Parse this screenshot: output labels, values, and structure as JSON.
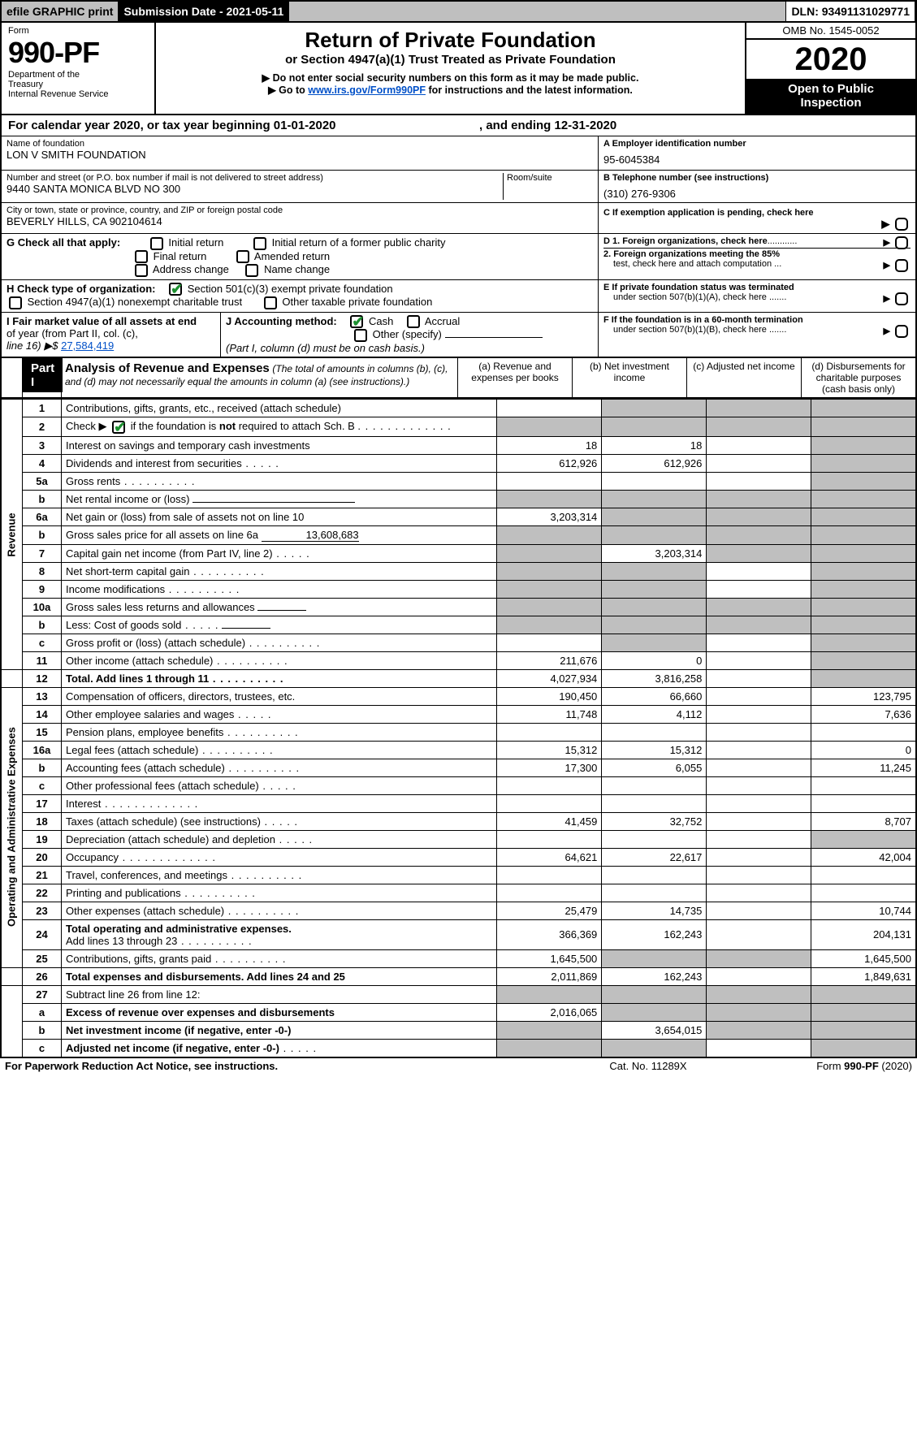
{
  "topbar": {
    "efile": "efile GRAPHIC print",
    "submission_label": "Submission Date - 2021-05-11",
    "dln_label": "DLN: 93491131029771"
  },
  "header": {
    "form_word": "Form",
    "form_no": "990-PF",
    "dept1": "Department of the",
    "dept2": "Treasury",
    "dept3": "Internal Revenue Service",
    "title": "Return of Private Foundation",
    "subtitle": "or Section 4947(a)(1) Trust Treated as Private Foundation",
    "instr1": "▶ Do not enter social security numbers on this form as it may be made public.",
    "instr2a": "▶ Go to ",
    "instr2_link": "www.irs.gov/Form990PF",
    "instr2b": " for instructions and the latest information.",
    "omb": "OMB No. 1545-0052",
    "year": "2020",
    "open1": "Open to Public",
    "open2": "Inspection"
  },
  "calbar": {
    "a": "For calendar year 2020, or tax year beginning 01-01-2020",
    "b": ", and ending 12-31-2020"
  },
  "id": {
    "name_label": "Name of foundation",
    "name": "LON V SMITH FOUNDATION",
    "ein_label": "A Employer identification number",
    "ein": "95-6045384",
    "addr_label": "Number and street (or P.O. box number if mail is not delivered to street address)",
    "addr": "9440 SANTA MONICA BLVD NO 300",
    "room_label": "Room/suite",
    "phone_label": "B Telephone number (see instructions)",
    "phone": "(310) 276-9306",
    "city_label": "City or town, state or province, country, and ZIP or foreign postal code",
    "city": "BEVERLY HILLS, CA  902104614",
    "c_label": "C If exemption application is pending, check here"
  },
  "g": {
    "label": "G Check all that apply:",
    "o1": "Initial return",
    "o2": "Initial return of a former public charity",
    "o3": "Final return",
    "o4": "Amended return",
    "o5": "Address change",
    "o6": "Name change"
  },
  "d": {
    "d1": "D 1. Foreign organizations, check here",
    "d2a": "2. Foreign organizations meeting the 85%",
    "d2b": "test, check here and attach computation ..."
  },
  "h": {
    "label": "H Check type of organization:",
    "o1": "Section 501(c)(3) exempt private foundation",
    "o2": "Section 4947(a)(1) nonexempt charitable trust",
    "o3": "Other taxable private foundation"
  },
  "e": {
    "l1": "E  If private foundation status was terminated",
    "l2": "under section 507(b)(1)(A), check here ......."
  },
  "i": {
    "l1": "I Fair market value of all assets at end",
    "l2": "of year (from Part II, col. (c),",
    "l3": "line 16) ▶$",
    "val": "27,584,419"
  },
  "j": {
    "label": "J Accounting method:",
    "cash": "Cash",
    "accrual": "Accrual",
    "other": "Other (specify)",
    "note": "(Part I, column (d) must be on cash basis.)"
  },
  "f": {
    "l1": "F  If the foundation is in a 60-month termination",
    "l2": "under section 507(b)(1)(B), check here ......."
  },
  "part1": {
    "label": "Part I",
    "title": "Analysis of Revenue and Expenses",
    "paren": "(The total of amounts in columns (b), (c), and (d) may not necessarily equal the amounts in column (a) (see instructions).)",
    "cola": "(a)    Revenue and expenses per books",
    "colb": "(b)   Net investment income",
    "colc": "(c)   Adjusted net income",
    "cold": "(d)   Disbursements for charitable purposes (cash basis only)"
  },
  "sides": {
    "rev": "Revenue",
    "exp": "Operating and Administrative Expenses"
  },
  "rows": {
    "r1": {
      "n": "1",
      "d": "Contributions, gifts, grants, etc., received (attach schedule)"
    },
    "r2": {
      "n": "2",
      "d_a": "Check ▶",
      "d_b": " if the foundation is ",
      "d_not": "not",
      "d_c": " required to attach Sch. B"
    },
    "r3": {
      "n": "3",
      "d": "Interest on savings and temporary cash investments",
      "a": "18",
      "b": "18"
    },
    "r4": {
      "n": "4",
      "d": "Dividends and interest from securities",
      "a": "612,926",
      "b": "612,926"
    },
    "r5a": {
      "n": "5a",
      "d": "Gross rents"
    },
    "r5b": {
      "n": "b",
      "d": "Net rental income or (loss)"
    },
    "r6a": {
      "n": "6a",
      "d": "Net gain or (loss) from sale of assets not on line 10",
      "a": "3,203,314"
    },
    "r6b": {
      "n": "b",
      "d": "Gross sales price for all assets on line 6a",
      "v": "13,608,683"
    },
    "r7": {
      "n": "7",
      "d": "Capital gain net income (from Part IV, line 2)",
      "b": "3,203,314"
    },
    "r8": {
      "n": "8",
      "d": "Net short-term capital gain"
    },
    "r9": {
      "n": "9",
      "d": "Income modifications"
    },
    "r10a": {
      "n": "10a",
      "d": "Gross sales less returns and allowances"
    },
    "r10b": {
      "n": "b",
      "d": "Less: Cost of goods sold"
    },
    "r10c": {
      "n": "c",
      "d": "Gross profit or (loss) (attach schedule)"
    },
    "r11": {
      "n": "11",
      "d": "Other income (attach schedule)",
      "a": "211,676",
      "b": "0"
    },
    "r12": {
      "n": "12",
      "d": "Total. Add lines 1 through 11",
      "a": "4,027,934",
      "b": "3,816,258"
    },
    "r13": {
      "n": "13",
      "d": "Compensation of officers, directors, trustees, etc.",
      "a": "190,450",
      "b": "66,660",
      "dd": "123,795"
    },
    "r14": {
      "n": "14",
      "d": "Other employee salaries and wages",
      "a": "11,748",
      "b": "4,112",
      "dd": "7,636"
    },
    "r15": {
      "n": "15",
      "d": "Pension plans, employee benefits"
    },
    "r16a": {
      "n": "16a",
      "d": "Legal fees (attach schedule)",
      "a": "15,312",
      "b": "15,312",
      "dd": "0"
    },
    "r16b": {
      "n": "b",
      "d": "Accounting fees (attach schedule)",
      "a": "17,300",
      "b": "6,055",
      "dd": "11,245"
    },
    "r16c": {
      "n": "c",
      "d": "Other professional fees (attach schedule)"
    },
    "r17": {
      "n": "17",
      "d": "Interest"
    },
    "r18": {
      "n": "18",
      "d": "Taxes (attach schedule) (see instructions)",
      "a": "41,459",
      "b": "32,752",
      "dd": "8,707"
    },
    "r19": {
      "n": "19",
      "d": "Depreciation (attach schedule) and depletion"
    },
    "r20": {
      "n": "20",
      "d": "Occupancy",
      "a": "64,621",
      "b": "22,617",
      "dd": "42,004"
    },
    "r21": {
      "n": "21",
      "d": "Travel, conferences, and meetings"
    },
    "r22": {
      "n": "22",
      "d": "Printing and publications"
    },
    "r23": {
      "n": "23",
      "d": "Other expenses (attach schedule)",
      "a": "25,479",
      "b": "14,735",
      "dd": "10,744"
    },
    "r24": {
      "n": "24",
      "d": "Total operating and administrative expenses.",
      "d2": "Add lines 13 through 23",
      "a": "366,369",
      "b": "162,243",
      "dd": "204,131"
    },
    "r25": {
      "n": "25",
      "d": "Contributions, gifts, grants paid",
      "a": "1,645,500",
      "dd": "1,645,500"
    },
    "r26": {
      "n": "26",
      "d": "Total expenses and disbursements. Add lines 24 and 25",
      "a": "2,011,869",
      "b": "162,243",
      "dd": "1,849,631"
    },
    "r27": {
      "n": "27",
      "d": "Subtract line 26 from line 12:"
    },
    "r27a": {
      "n": "a",
      "d": "Excess of revenue over expenses and disbursements",
      "a": "2,016,065"
    },
    "r27b": {
      "n": "b",
      "d": "Net investment income (if negative, enter -0-)",
      "b": "3,654,015"
    },
    "r27c": {
      "n": "c",
      "d": "Adjusted net income (if negative, enter -0-)"
    }
  },
  "footer": {
    "a": "For Paperwork Reduction Act Notice, see instructions.",
    "b": "Cat. No. 11289X",
    "c": "Form 990-PF (2020)"
  }
}
